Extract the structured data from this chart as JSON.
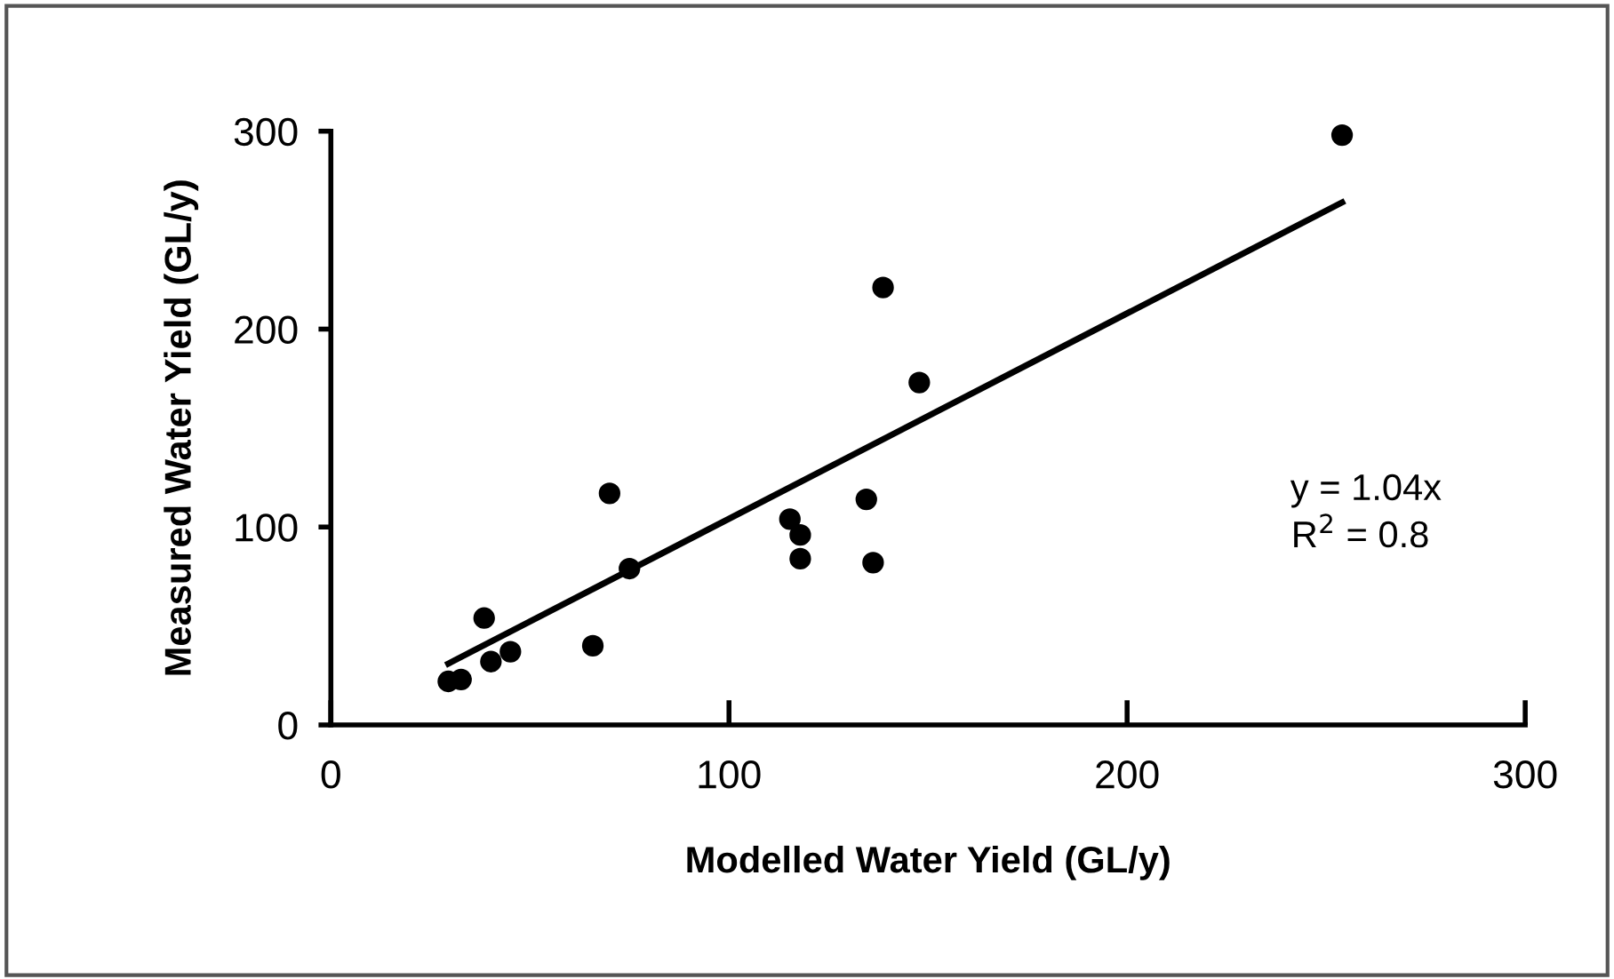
{
  "chart_data": {
    "type": "scatter",
    "xlabel": "Modelled Water Yield (GL/y)",
    "ylabel": "Measured Water Yield (GL/y)",
    "xlim": [
      0,
      300
    ],
    "ylim": [
      0,
      300
    ],
    "xticks": [
      0,
      100,
      200,
      300
    ],
    "yticks": [
      0,
      100,
      200,
      300
    ],
    "grid": false,
    "legend": false,
    "marker": "circle",
    "series": [
      {
        "color": "#000000",
        "x": [
          29.5,
          32.7,
          38.5,
          40.2,
          45.1,
          65.8,
          70,
          75,
          115.3,
          117.9,
          117.9,
          134.5,
          136.2,
          138.7,
          147.8,
          254
        ],
        "values": [
          22,
          23,
          54,
          32,
          37,
          40,
          117,
          79,
          104,
          96,
          84,
          114,
          82,
          221,
          173,
          298
        ]
      },
      {
        "type": "line",
        "color": "#000000",
        "line_style": "solid",
        "marker": "none",
        "x": [
          29.5,
          254
        ],
        "values": [
          31,
          264
        ]
      }
    ],
    "annotations": [
      "y = 1.04x",
      "R$^{2}$ = 0.8"
    ]
  }
}
